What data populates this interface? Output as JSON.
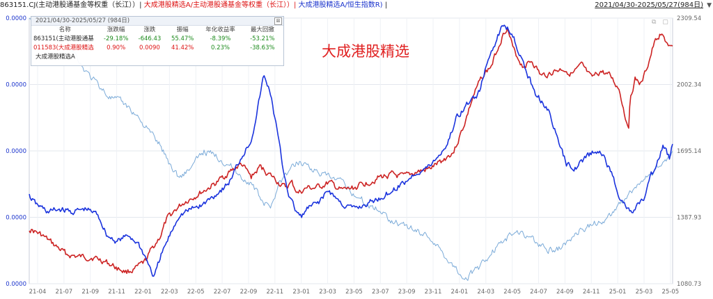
{
  "header": {
    "seg1": "863151.CJ(主动港股通基金等权重（长江））|",
    "seg2": " 大成港股精选A/主动港股通基金等权重（长江））|",
    "seg3": " 大成港股精选A/恒生指数R)",
    "seg4": " |",
    "date_range": "2021/04/30-2025/05/27(984日)",
    "dropdown_arrow": "▼"
  },
  "title_overlay": "大成港股精选",
  "stats_panel": {
    "header": "2021/04/30-2025/05/27 (984日)",
    "close_icon": "⊠",
    "columns": [
      "名称",
      "涨跌幅",
      "涨跌",
      "振幅",
      "年化收益率",
      "最大回撤"
    ],
    "rows": [
      {
        "name": "863151(主动港股通基",
        "change_pct": "-29.18%",
        "change": "-646.43",
        "amplitude": "55.47%",
        "annual_return": "-8.39%",
        "max_drawdown": "-53.21%"
      },
      {
        "name": "011583(大成港股精选",
        "change_pct": "0.90%",
        "change": "0.0090",
        "amplitude": "41.42%",
        "annual_return": "0.23%",
        "max_drawdown": "-38.63%"
      }
    ],
    "extra_series_label": "大成港股精选A"
  },
  "window_icons": "⧉ ▢",
  "chart_data": {
    "type": "line",
    "title": "大成港股精选",
    "x_ticks": [
      "21-04",
      "21-07",
      "21-09",
      "21-11",
      "22-01",
      "22-03",
      "22-05",
      "22-07",
      "22-09",
      "22-11",
      "23-01",
      "23-03",
      "23-05",
      "23-07",
      "23-09",
      "23-11",
      "24-01",
      "24-03",
      "24-05",
      "24-07",
      "24-09",
      "24-11",
      "25-01",
      "25-03",
      "25-05"
    ],
    "left_axis_ticks": [
      "0.0000",
      "0.0000",
      "0.0000",
      "0.0000",
      "0.0000"
    ],
    "right_axis_ticks": [
      "2309.54",
      "2002.34",
      "1695.14",
      "1387.93",
      "1080.73"
    ],
    "right_ylim": [
      1080.73,
      2309.54
    ],
    "grid": true,
    "series": [
      {
        "name": "大成港股精选A/主动港股通基金等权重（长江）",
        "color": "#cc2222",
        "points": [
          [
            0,
            0.793
          ],
          [
            0.02,
            0.818
          ],
          [
            0.04,
            0.855
          ],
          [
            0.06,
            0.89
          ],
          [
            0.08,
            0.9
          ],
          [
            0.1,
            0.9
          ],
          [
            0.12,
            0.915
          ],
          [
            0.14,
            0.94
          ],
          [
            0.155,
            0.955
          ],
          [
            0.17,
            0.945
          ],
          [
            0.185,
            0.92
          ],
          [
            0.195,
            0.875
          ],
          [
            0.21,
            0.82
          ],
          [
            0.22,
            0.76
          ],
          [
            0.235,
            0.72
          ],
          [
            0.25,
            0.69
          ],
          [
            0.265,
            0.67
          ],
          [
            0.28,
            0.65
          ],
          [
            0.3,
            0.62
          ],
          [
            0.32,
            0.58
          ],
          [
            0.34,
            0.55
          ],
          [
            0.355,
            0.6
          ],
          [
            0.37,
            0.56
          ],
          [
            0.39,
            0.6
          ],
          [
            0.41,
            0.64
          ],
          [
            0.42,
            0.62
          ],
          [
            0.43,
            0.66
          ],
          [
            0.445,
            0.64
          ],
          [
            0.46,
            0.64
          ],
          [
            0.48,
            0.62
          ],
          [
            0.5,
            0.65
          ],
          [
            0.52,
            0.64
          ],
          [
            0.54,
            0.62
          ],
          [
            0.56,
            0.6
          ],
          [
            0.58,
            0.59
          ],
          [
            0.6,
            0.6
          ],
          [
            0.62,
            0.58
          ],
          [
            0.64,
            0.57
          ],
          [
            0.66,
            0.54
          ],
          [
            0.68,
            0.5
          ],
          [
            0.695,
            0.41
          ],
          [
            0.71,
            0.3
          ],
          [
            0.725,
            0.22
          ],
          [
            0.74,
            0.18
          ],
          [
            0.755,
            0.08
          ],
          [
            0.765,
            0.03
          ],
          [
            0.775,
            0.12
          ],
          [
            0.79,
            0.18
          ],
          [
            0.805,
            0.16
          ],
          [
            0.82,
            0.22
          ],
          [
            0.84,
            0.2
          ],
          [
            0.855,
            0.19
          ],
          [
            0.87,
            0.21
          ],
          [
            0.885,
            0.18
          ],
          [
            0.9,
            0.23
          ],
          [
            0.915,
            0.2
          ],
          [
            0.93,
            0.22
          ],
          [
            0.945,
            0.27
          ],
          [
            0.955,
            0.38
          ],
          [
            0.96,
            0.4
          ],
          [
            0.962,
            0.3
          ],
          [
            0.97,
            0.23
          ],
          [
            0.98,
            0.25
          ],
          [
            0.99,
            0.18
          ],
          [
            1.0,
            0.1
          ],
          [
            1.01,
            0.06
          ],
          [
            1.03,
            0.12
          ]
        ]
      },
      {
        "name": "大成港股精选A/恒生指数R",
        "color": "#1a33dd",
        "points": [
          [
            0,
            0.67
          ],
          [
            0.01,
            0.7
          ],
          [
            0.03,
            0.73
          ],
          [
            0.05,
            0.72
          ],
          [
            0.07,
            0.73
          ],
          [
            0.09,
            0.72
          ],
          [
            0.11,
            0.74
          ],
          [
            0.125,
            0.82
          ],
          [
            0.14,
            0.84
          ],
          [
            0.16,
            0.82
          ],
          [
            0.175,
            0.85
          ],
          [
            0.19,
            0.92
          ],
          [
            0.2,
            0.98
          ],
          [
            0.21,
            0.9
          ],
          [
            0.225,
            0.82
          ],
          [
            0.24,
            0.74
          ],
          [
            0.26,
            0.72
          ],
          [
            0.28,
            0.7
          ],
          [
            0.3,
            0.66
          ],
          [
            0.32,
            0.62
          ],
          [
            0.34,
            0.52
          ],
          [
            0.355,
            0.46
          ],
          [
            0.365,
            0.35
          ],
          [
            0.375,
            0.22
          ],
          [
            0.385,
            0.27
          ],
          [
            0.395,
            0.4
          ],
          [
            0.405,
            0.55
          ],
          [
            0.415,
            0.66
          ],
          [
            0.425,
            0.72
          ],
          [
            0.435,
            0.75
          ],
          [
            0.445,
            0.72
          ],
          [
            0.46,
            0.7
          ],
          [
            0.48,
            0.65
          ],
          [
            0.5,
            0.7
          ],
          [
            0.52,
            0.72
          ],
          [
            0.54,
            0.7
          ],
          [
            0.56,
            0.68
          ],
          [
            0.58,
            0.65
          ],
          [
            0.6,
            0.62
          ],
          [
            0.62,
            0.58
          ],
          [
            0.64,
            0.56
          ],
          [
            0.655,
            0.52
          ],
          [
            0.67,
            0.47
          ],
          [
            0.685,
            0.37
          ],
          [
            0.7,
            0.33
          ],
          [
            0.72,
            0.28
          ],
          [
            0.74,
            0.12
          ],
          [
            0.76,
            0.02
          ],
          [
            0.775,
            0.06
          ],
          [
            0.79,
            0.17
          ],
          [
            0.81,
            0.28
          ],
          [
            0.83,
            0.34
          ],
          [
            0.845,
            0.45
          ],
          [
            0.86,
            0.55
          ],
          [
            0.875,
            0.56
          ],
          [
            0.89,
            0.53
          ],
          [
            0.905,
            0.5
          ],
          [
            0.92,
            0.52
          ],
          [
            0.935,
            0.6
          ],
          [
            0.945,
            0.67
          ],
          [
            0.955,
            0.71
          ],
          [
            0.965,
            0.74
          ],
          [
            0.975,
            0.7
          ],
          [
            0.985,
            0.68
          ],
          [
            0.995,
            0.6
          ],
          [
            1.005,
            0.55
          ],
          [
            1.015,
            0.48
          ],
          [
            1.025,
            0.53
          ],
          [
            1.03,
            0.47
          ]
        ]
      },
      {
        "name": "大成港股精选A",
        "color": "#7aaad8",
        "points": [
          [
            0,
            0.0
          ],
          [
            0.03,
            0.0
          ],
          [
            0.05,
            0.05
          ],
          [
            0.07,
            0.12
          ],
          [
            0.09,
            0.2
          ],
          [
            0.11,
            0.25
          ],
          [
            0.13,
            0.3
          ],
          [
            0.15,
            0.32
          ],
          [
            0.17,
            0.36
          ],
          [
            0.19,
            0.42
          ],
          [
            0.21,
            0.48
          ],
          [
            0.225,
            0.55
          ],
          [
            0.24,
            0.6
          ],
          [
            0.26,
            0.56
          ],
          [
            0.28,
            0.5
          ],
          [
            0.3,
            0.52
          ],
          [
            0.32,
            0.55
          ],
          [
            0.34,
            0.6
          ],
          [
            0.355,
            0.62
          ],
          [
            0.37,
            0.68
          ],
          [
            0.385,
            0.72
          ],
          [
            0.4,
            0.62
          ],
          [
            0.415,
            0.58
          ],
          [
            0.43,
            0.54
          ],
          [
            0.445,
            0.55
          ],
          [
            0.46,
            0.58
          ],
          [
            0.48,
            0.6
          ],
          [
            0.5,
            0.62
          ],
          [
            0.52,
            0.66
          ],
          [
            0.54,
            0.7
          ],
          [
            0.56,
            0.72
          ],
          [
            0.58,
            0.76
          ],
          [
            0.6,
            0.78
          ],
          [
            0.62,
            0.8
          ],
          [
            0.64,
            0.82
          ],
          [
            0.66,
            0.88
          ],
          [
            0.675,
            0.92
          ],
          [
            0.69,
            0.96
          ],
          [
            0.7,
            0.98
          ],
          [
            0.72,
            0.94
          ],
          [
            0.74,
            0.88
          ],
          [
            0.76,
            0.84
          ],
          [
            0.78,
            0.8
          ],
          [
            0.8,
            0.82
          ],
          [
            0.82,
            0.86
          ],
          [
            0.84,
            0.88
          ],
          [
            0.86,
            0.85
          ],
          [
            0.88,
            0.8
          ],
          [
            0.9,
            0.78
          ],
          [
            0.92,
            0.76
          ],
          [
            0.94,
            0.72
          ],
          [
            0.96,
            0.66
          ],
          [
            0.98,
            0.62
          ],
          [
            1.0,
            0.58
          ],
          [
            1.02,
            0.54
          ],
          [
            1.03,
            0.5
          ]
        ]
      }
    ]
  }
}
